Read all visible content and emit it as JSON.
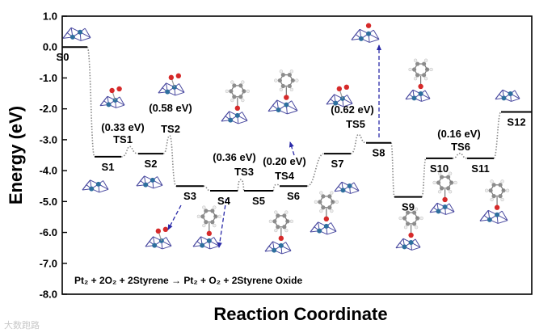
{
  "chart_data": {
    "type": "line",
    "xlabel": "Reaction Coordinate",
    "ylabel": "Energy (eV)",
    "ylim": [
      -8.0,
      1.0
    ],
    "yticks": [
      "1.0",
      "0.0",
      "-1.0",
      "-2.0",
      "-3.0",
      "-4.0",
      "-5.0",
      "-6.0",
      "-7.0",
      "-8.0"
    ],
    "states": [
      {
        "label": "S0",
        "energy": 0.0
      },
      {
        "label": "S1",
        "energy": -3.55
      },
      {
        "label": "S2",
        "energy": -3.45
      },
      {
        "label": "S3",
        "energy": -4.5
      },
      {
        "label": "S4",
        "energy": -4.65
      },
      {
        "label": "S5",
        "energy": -4.65
      },
      {
        "label": "S6",
        "energy": -4.5
      },
      {
        "label": "S7",
        "energy": -3.45
      },
      {
        "label": "S8",
        "energy": -3.1
      },
      {
        "label": "S9",
        "energy": -4.85
      },
      {
        "label": "S10",
        "energy": -3.6
      },
      {
        "label": "S11",
        "energy": -3.6
      },
      {
        "label": "S12",
        "energy": -2.1
      }
    ],
    "transition_states": [
      {
        "label": "TS1",
        "barrier": "(0.33 eV)",
        "energy": -3.22
      },
      {
        "label": "TS2",
        "barrier": "(0.58 eV)",
        "energy": -2.87
      },
      {
        "label": "TS3",
        "barrier": "(0.36 eV)",
        "energy": -4.29
      },
      {
        "label": "TS4",
        "barrier": "(0.20 eV)",
        "energy": -4.45
      },
      {
        "label": "TS5",
        "barrier": "(0.62 eV)",
        "energy": -2.83
      },
      {
        "label": "TS6",
        "barrier": "(0.16 eV)",
        "energy": -3.44
      }
    ],
    "reaction_equation": "Pt₂ + 2O₂ + 2Styrene → Pt₂ + O₂ + 2Styrene Oxide",
    "colors": {
      "level": "#000000",
      "connector": "#888888",
      "arrow": "#2a2aa8",
      "pt_atom": "#2e6f9e",
      "o_atom": "#d62a2a",
      "c_atom": "#8c8c8c",
      "h_atom": "#eeeeee",
      "bond": "#4a4aa0"
    }
  },
  "watermark": "大数跑路"
}
